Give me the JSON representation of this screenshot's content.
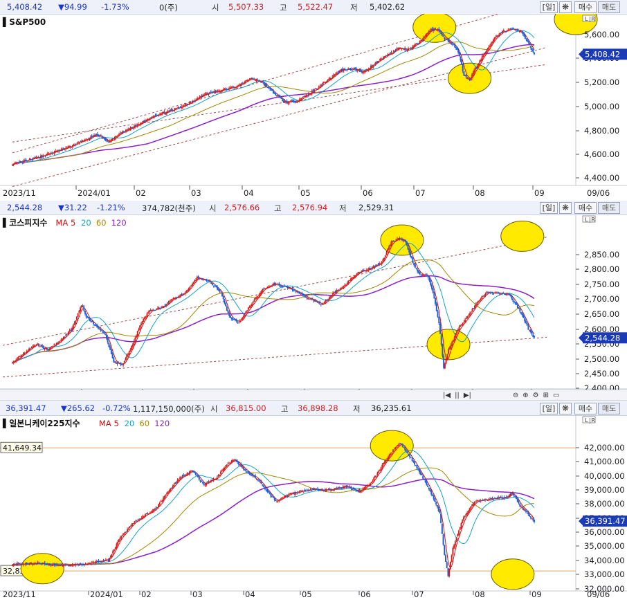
{
  "panels": [
    {
      "id": "sp500",
      "header": {
        "last": "5,408.42",
        "change": "▼94.99",
        "pct": "-1.73%",
        "volume": "0(주)",
        "open_label": "시",
        "open": "5,507.33",
        "high_label": "고",
        "high": "5,522.47",
        "low_label": "저",
        "low": "5,402.62"
      },
      "buttons": {
        "period": "[일]",
        "settings": "❋",
        "buy": "매수",
        "sell": "매도"
      },
      "corner": "L|R",
      "chart_data": {
        "type": "candlestick",
        "title": "S&P500",
        "ma_legend": [],
        "x_labels": [
          "2023/11",
          "2024/01",
          "02",
          "03",
          "04",
          "05",
          "06",
          "07",
          "08",
          "09",
          "09/06"
        ],
        "y_ticks": [
          "5,600.00",
          "5,400.00",
          "5,200.00",
          "5,000.00",
          "4,800.00",
          "4,600.00",
          "4,400.00"
        ],
        "ylim": [
          4350,
          5720
        ],
        "last_value": "5,408.42",
        "close_path": [
          [
            0,
            4515
          ],
          [
            15,
            4550
          ],
          [
            30,
            4595
          ],
          [
            45,
            4640
          ],
          [
            60,
            4700
          ],
          [
            75,
            4760
          ],
          [
            85,
            4700
          ],
          [
            95,
            4770
          ],
          [
            110,
            4840
          ],
          [
            125,
            4920
          ],
          [
            140,
            4960
          ],
          [
            155,
            5020
          ],
          [
            170,
            5100
          ],
          [
            185,
            5130
          ],
          [
            200,
            5170
          ],
          [
            210,
            5230
          ],
          [
            220,
            5200
          ],
          [
            230,
            5110
          ],
          [
            240,
            5030
          ],
          [
            250,
            5040
          ],
          [
            260,
            5090
          ],
          [
            270,
            5160
          ],
          [
            280,
            5230
          ],
          [
            290,
            5300
          ],
          [
            300,
            5310
          ],
          [
            310,
            5280
          ],
          [
            320,
            5360
          ],
          [
            330,
            5420
          ],
          [
            340,
            5480
          ],
          [
            350,
            5470
          ],
          [
            360,
            5540
          ],
          [
            368,
            5630
          ],
          [
            375,
            5640
          ],
          [
            380,
            5570
          ],
          [
            388,
            5520
          ],
          [
            393,
            5450
          ],
          [
            398,
            5260
          ],
          [
            403,
            5220
          ],
          [
            408,
            5310
          ],
          [
            415,
            5420
          ],
          [
            425,
            5560
          ],
          [
            432,
            5620
          ],
          [
            440,
            5640
          ],
          [
            448,
            5620
          ],
          [
            455,
            5520
          ],
          [
            460,
            5430
          ]
        ],
        "annotations": [
          {
            "type": "ellipse",
            "at": [
              372,
              5655
            ]
          },
          {
            "type": "ellipse",
            "at": [
              403,
              5230
            ]
          },
          {
            "type": "ellipse",
            "at": [
              462,
              5830
            ]
          }
        ]
      }
    },
    {
      "id": "kospi",
      "header": {
        "last": "2,544.28",
        "change": "▼31.22",
        "pct": "-1.21%",
        "volume": "374,782(천주)",
        "open_label": "시",
        "open": "2,576.66",
        "high_label": "고",
        "high": "2,576.94",
        "low_label": "저",
        "low": "2,529.31"
      },
      "buttons": {
        "period": "[일]",
        "settings": "❋",
        "buy": "매수",
        "sell": "매도"
      },
      "corner": "L|R",
      "chart_data": {
        "type": "candlestick",
        "title": "코스피지수",
        "ma_legend": [
          {
            "label": "MA 5",
            "color": "#d01010"
          },
          {
            "label": "20",
            "color": "#13a2c8"
          },
          {
            "label": "60",
            "color": "#a38700"
          },
          {
            "label": "120",
            "color": "#8b1fc9"
          }
        ],
        "x_labels": [
          "2023/11",
          "2024/01",
          "02",
          "03",
          "04",
          "05",
          "06",
          "07",
          "08",
          "09",
          "09/06"
        ],
        "y_ticks": [
          "2,850.00",
          "2,800.00",
          "2,750.00",
          "2,700.00",
          "2,650.00",
          "2,600.00",
          "2,550.00",
          "2,500.00",
          "2,450.00",
          "2,400.00"
        ],
        "ylim": [
          2385,
          2905
        ],
        "last_value": "2,544.28",
        "close_path": [
          [
            0,
            2470
          ],
          [
            10,
            2500
          ],
          [
            20,
            2530
          ],
          [
            30,
            2510
          ],
          [
            40,
            2540
          ],
          [
            50,
            2580
          ],
          [
            58,
            2660
          ],
          [
            62,
            2620
          ],
          [
            70,
            2590
          ],
          [
            78,
            2560
          ],
          [
            85,
            2470
          ],
          [
            92,
            2460
          ],
          [
            100,
            2520
          ],
          [
            108,
            2600
          ],
          [
            115,
            2640
          ],
          [
            125,
            2650
          ],
          [
            135,
            2680
          ],
          [
            145,
            2700
          ],
          [
            155,
            2750
          ],
          [
            165,
            2740
          ],
          [
            175,
            2700
          ],
          [
            182,
            2620
          ],
          [
            190,
            2600
          ],
          [
            200,
            2660
          ],
          [
            210,
            2710
          ],
          [
            220,
            2730
          ],
          [
            230,
            2720
          ],
          [
            240,
            2700
          ],
          [
            250,
            2680
          ],
          [
            260,
            2660
          ],
          [
            270,
            2700
          ],
          [
            280,
            2730
          ],
          [
            290,
            2770
          ],
          [
            300,
            2780
          ],
          [
            310,
            2800
          ],
          [
            318,
            2870
          ],
          [
            325,
            2880
          ],
          [
            330,
            2870
          ],
          [
            336,
            2800
          ],
          [
            342,
            2760
          ],
          [
            348,
            2760
          ],
          [
            353,
            2700
          ],
          [
            358,
            2600
          ],
          [
            362,
            2450
          ],
          [
            366,
            2510
          ],
          [
            374,
            2580
          ],
          [
            382,
            2620
          ],
          [
            390,
            2670
          ],
          [
            398,
            2700
          ],
          [
            410,
            2700
          ],
          [
            418,
            2690
          ],
          [
            426,
            2640
          ],
          [
            433,
            2580
          ],
          [
            438,
            2550
          ]
        ],
        "annotations": [
          {
            "type": "ellipse",
            "at": [
              327,
              2875
            ]
          },
          {
            "type": "ellipse",
            "at": [
              366,
              2528
            ]
          },
          {
            "type": "ellipse",
            "at": [
              428,
              2888
            ]
          }
        ]
      }
    },
    {
      "id": "nikkei",
      "header": {
        "last": "36,391.47",
        "change": "▼265.62",
        "pct": "-0.72%",
        "volume": "1,117,150,000(주)",
        "open_label": "시",
        "open": "36,815.00",
        "high_label": "고",
        "high": "36,898.28",
        "low_label": "저",
        "low": "36,235.61"
      },
      "buttons": {
        "period": "[일]",
        "settings": "❋",
        "buy": "매수",
        "sell": "매도"
      },
      "corner": "L|R",
      "chart_data": {
        "type": "candlestick",
        "title": "일본니케이225지수",
        "ma_legend": [
          {
            "label": "MA 5",
            "color": "#d01010"
          },
          {
            "label": "20",
            "color": "#13a2c8"
          },
          {
            "label": "60",
            "color": "#a38700"
          },
          {
            "label": "120",
            "color": "#8b1fc9"
          }
        ],
        "x_labels": [
          "2023/11",
          "2024/01",
          "02",
          "03",
          "04",
          "05",
          "06",
          "07",
          "08",
          "09",
          "09/06"
        ],
        "y_ticks": [
          "42,000.00",
          "41,000.00",
          "40,000.00",
          "39,000.00",
          "38,000.00",
          "37,000.00",
          "36,000.00",
          "35,000.00",
          "34,000.00",
          "33,000.00",
          "32,000.00"
        ],
        "ylim": [
          31500,
          42700
        ],
        "last_value": "36,391.47",
        "ref_lines": [
          {
            "label": "41,649.34",
            "value": 41649.34
          },
          {
            "label": "32,833.61",
            "value": 32833.61
          }
        ],
        "close_path": [
          [
            0,
            33300
          ],
          [
            20,
            33400
          ],
          [
            40,
            33200
          ],
          [
            60,
            33300
          ],
          [
            70,
            33500
          ],
          [
            80,
            33600
          ],
          [
            90,
            35200
          ],
          [
            100,
            36200
          ],
          [
            110,
            36800
          ],
          [
            120,
            37300
          ],
          [
            130,
            38500
          ],
          [
            140,
            39500
          ],
          [
            150,
            40000
          ],
          [
            160,
            39000
          ],
          [
            170,
            39500
          ],
          [
            180,
            40500
          ],
          [
            185,
            40800
          ],
          [
            195,
            40000
          ],
          [
            205,
            39400
          ],
          [
            215,
            38300
          ],
          [
            220,
            37800
          ],
          [
            230,
            38300
          ],
          [
            240,
            38500
          ],
          [
            250,
            38700
          ],
          [
            260,
            38600
          ],
          [
            270,
            38700
          ],
          [
            280,
            38900
          ],
          [
            290,
            38500
          ],
          [
            300,
            39200
          ],
          [
            310,
            40500
          ],
          [
            318,
            41500
          ],
          [
            324,
            42000
          ],
          [
            330,
            41300
          ],
          [
            338,
            40200
          ],
          [
            345,
            39200
          ],
          [
            352,
            38000
          ],
          [
            357,
            37000
          ],
          [
            361,
            34000
          ],
          [
            364,
            32500
          ],
          [
            368,
            34500
          ],
          [
            376,
            36500
          ],
          [
            386,
            37800
          ],
          [
            400,
            38000
          ],
          [
            412,
            38100
          ],
          [
            418,
            38400
          ],
          [
            424,
            37500
          ],
          [
            430,
            37000
          ],
          [
            436,
            36400
          ]
        ],
        "annotations": [
          {
            "type": "ellipse",
            "at": [
              25,
              33000
            ]
          },
          {
            "type": "ellipse",
            "at": [
              317,
              41800
            ]
          },
          {
            "type": "ellipse",
            "at": [
              418,
              32600
            ]
          }
        ]
      }
    }
  ],
  "colors": {
    "up": "#d62020",
    "down": "#1f5fd6",
    "ma5": "#d01010",
    "ma20": "#13a2c8",
    "ma60": "#a38700",
    "ma120": "#8b1fc9",
    "highlight": "#ffea00",
    "trend": "#a04848",
    "ref": "#e0a060"
  },
  "toolbar_icons": [
    "|◀",
    "||",
    "▶|",
    "⊖",
    "⊕",
    "⚙",
    "⊞",
    "▭"
  ]
}
